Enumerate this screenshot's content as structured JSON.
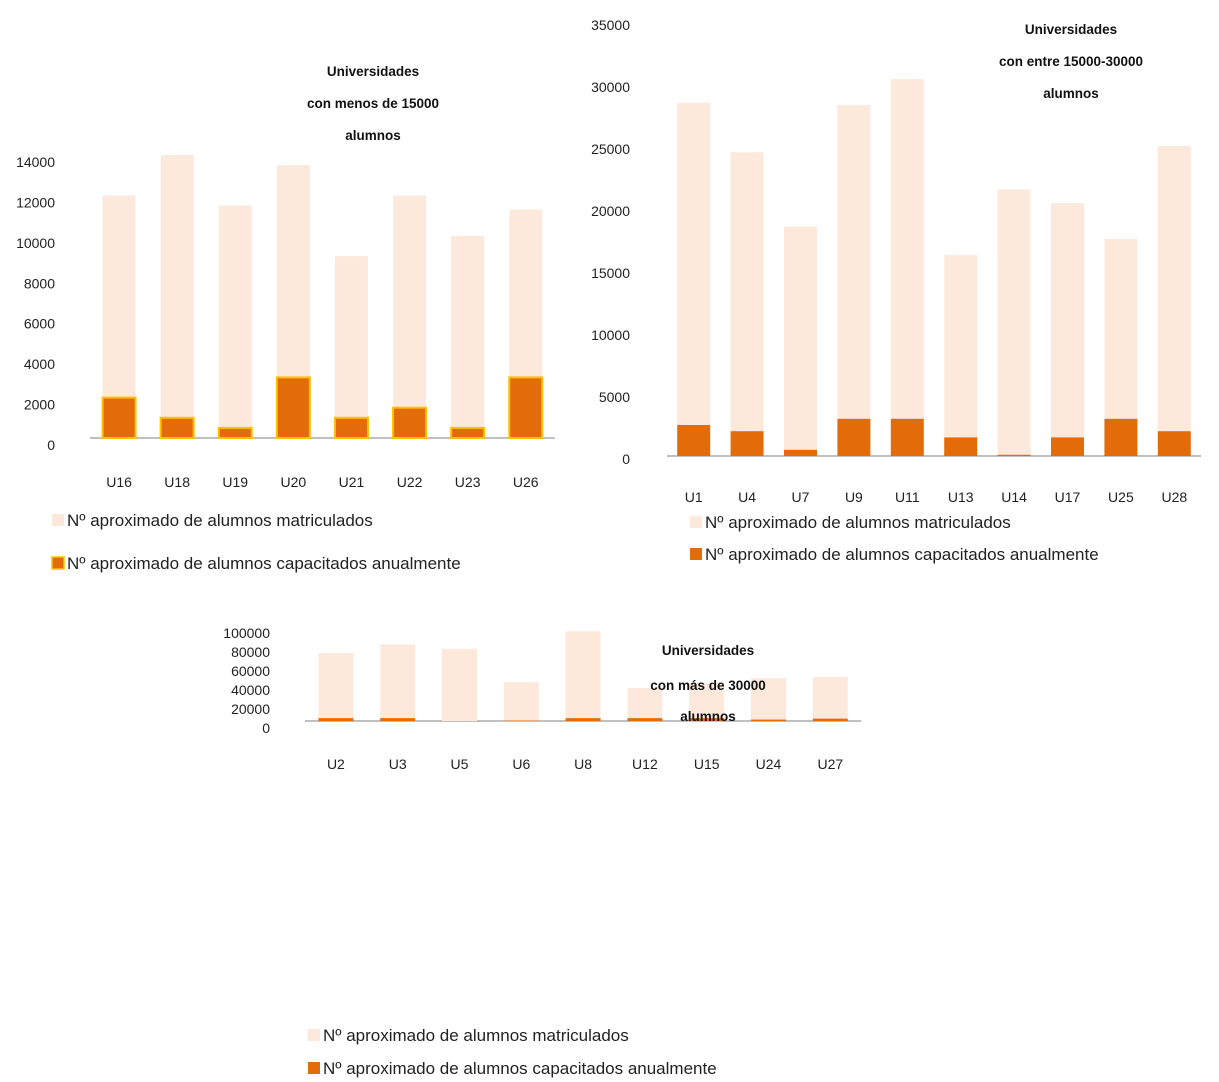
{
  "colors": {
    "matriculados": "#fce9dc",
    "capacitados": "#e26b0a",
    "outline_chart1": "#ffc000",
    "axis": "#808080"
  },
  "legend": {
    "matriculados": "Nº aproximado de alumnos matriculados",
    "capacitados": "Nº aproximado de alumnos capacitados anualmente"
  },
  "chart_data": [
    {
      "type": "bar",
      "stacked": true,
      "title": [
        "Universidades",
        "con menos de 15000",
        "alumnos"
      ],
      "categories": [
        "U16",
        "U18",
        "U19",
        "U20",
        "U21",
        "U22",
        "U23",
        "U26"
      ],
      "series": [
        {
          "name": "Nº aproximado de alumnos capacitados anualmente",
          "values": [
            2000,
            1000,
            500,
            3000,
            1000,
            1500,
            500,
            3000
          ]
        },
        {
          "name": "Nº aproximado de alumnos matriculados",
          "values": [
            10000,
            13000,
            11000,
            10500,
            8000,
            10500,
            9500,
            8300
          ]
        }
      ],
      "yticks": [
        0,
        2000,
        4000,
        6000,
        8000,
        10000,
        12000,
        14000
      ],
      "ylim": [
        0,
        14000
      ],
      "legend_position": "bottom"
    },
    {
      "type": "bar",
      "stacked": true,
      "title": [
        "Universidades",
        "con entre 15000-30000",
        "alumnos"
      ],
      "categories": [
        "U1",
        "U4",
        "U7",
        "U9",
        "U11",
        "U13",
        "U14",
        "U17",
        "U25",
        "U28"
      ],
      "series": [
        {
          "name": "Nº aproximado de alumnos capacitados anualmente",
          "values": [
            2500,
            2000,
            500,
            3000,
            3000,
            1500,
            100,
            1500,
            3000,
            2000
          ]
        },
        {
          "name": "Nº aproximado de alumnos matriculados",
          "values": [
            26000,
            22500,
            18000,
            25300,
            27400,
            14700,
            21400,
            18900,
            14500,
            23000
          ]
        }
      ],
      "yticks": [
        0,
        5000,
        10000,
        15000,
        20000,
        25000,
        30000,
        35000
      ],
      "ylim": [
        0,
        35000
      ],
      "legend_position": "bottom"
    },
    {
      "type": "bar",
      "stacked": true,
      "title": [
        "Universidades",
        "con más de 30000",
        "alumnos"
      ],
      "categories": [
        "U2",
        "U3",
        "U5",
        "U6",
        "U8",
        "U12",
        "U15",
        "U24",
        "U27"
      ],
      "series": [
        {
          "name": "Nº aproximado de alumnos capacitados anualmente",
          "values": [
            3000,
            3000,
            0,
            500,
            3000,
            3000,
            3000,
            1500,
            2500
          ]
        },
        {
          "name": "Nº aproximado de alumnos matriculados",
          "values": [
            68500,
            77500,
            76000,
            40500,
            91500,
            32000,
            36800,
            43700,
            43800
          ]
        }
      ],
      "yticks": [
        0,
        20000,
        40000,
        60000,
        80000,
        100000
      ],
      "ylim": [
        0,
        100000
      ],
      "legend_position": "bottom"
    }
  ]
}
